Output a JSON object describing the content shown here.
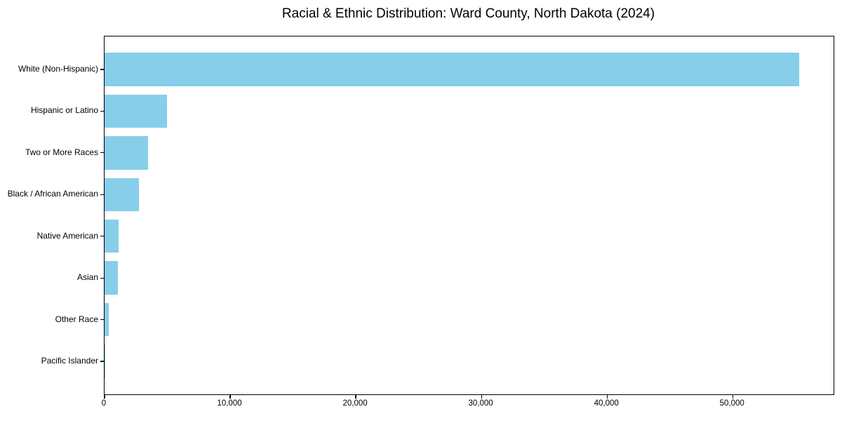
{
  "chart_data": {
    "type": "bar",
    "orientation": "horizontal",
    "title": "Racial & Ethnic Distribution: Ward County, North Dakota (2024)",
    "categories": [
      "White (Non-Hispanic)",
      "Hispanic or Latino",
      "Two or More Races",
      "Black / African American",
      "Native American",
      "Asian",
      "Other Race",
      "Pacific Islander"
    ],
    "values": [
      55270,
      4960,
      3470,
      2760,
      1100,
      1050,
      340,
      40
    ],
    "xlabel": "",
    "ylabel": "",
    "xlim": [
      0,
      58030
    ],
    "xticks": {
      "values": [
        0,
        10000,
        20000,
        30000,
        40000,
        50000
      ],
      "labels": [
        "0",
        "10,000",
        "20,000",
        "30,000",
        "40,000",
        "50,000"
      ]
    },
    "bar_color": "#87CEEB",
    "axis_color": "#000000",
    "grid": false,
    "legend": null
  }
}
